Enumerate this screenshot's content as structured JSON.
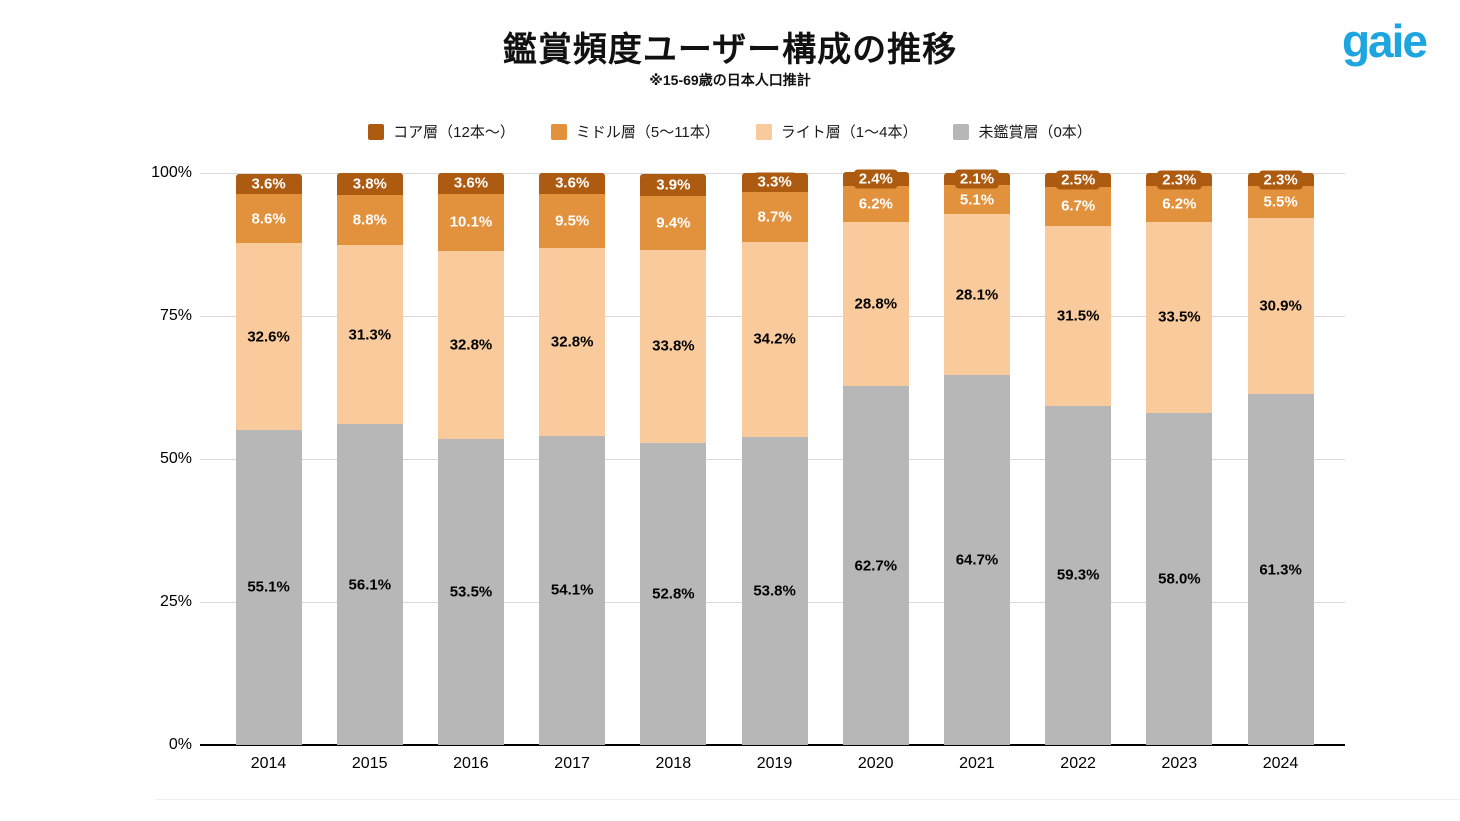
{
  "header": {
    "title": "鑑賞頻度ユーザー構成の推移",
    "subtitle": "※15-69歳の日本人口推計",
    "logo_text": "gaie",
    "logo_color": "#1CA5DE"
  },
  "chart_data": {
    "type": "bar",
    "stacked": true,
    "title": "鑑賞頻度ユーザー構成の推移",
    "subtitle": "※15-69歳の日本人口推計",
    "categories": [
      "2014",
      "2015",
      "2016",
      "2017",
      "2018",
      "2019",
      "2020",
      "2021",
      "2022",
      "2023",
      "2024"
    ],
    "series": [
      {
        "id": "core",
        "name": "コア層（12本〜）",
        "color": "#AD5B10",
        "label_color": "#FFFFFF",
        "values": [
          3.6,
          3.8,
          3.6,
          3.6,
          3.9,
          3.3,
          2.4,
          2.1,
          2.5,
          2.3,
          2.3
        ]
      },
      {
        "id": "middle",
        "name": "ミドル層（5〜11本）",
        "color": "#E2923D",
        "label_color": "#FFFFFF",
        "values": [
          8.6,
          8.8,
          10.1,
          9.5,
          9.4,
          8.7,
          6.2,
          5.1,
          6.7,
          6.2,
          5.5
        ]
      },
      {
        "id": "light",
        "name": "ライト層（1〜4本）",
        "color": "#F8CA9C",
        "label_color": "#000000",
        "values": [
          32.6,
          31.3,
          32.8,
          32.8,
          33.8,
          34.2,
          28.8,
          28.1,
          31.5,
          33.5,
          30.9
        ]
      },
      {
        "id": "unwatched",
        "name": "未鑑賞層（0本）",
        "color": "#B7B7B7",
        "label_color": "#000000",
        "values": [
          55.1,
          56.1,
          53.5,
          54.1,
          52.8,
          53.8,
          62.7,
          64.7,
          59.3,
          58.0,
          61.3
        ]
      }
    ],
    "stack_order_bottom_to_top": [
      "unwatched",
      "light",
      "middle",
      "core"
    ],
    "value_suffix": "%",
    "y_ticks": [
      {
        "label": "0%",
        "value": 0
      },
      {
        "label": "25%",
        "value": 25
      },
      {
        "label": "50%",
        "value": 50
      },
      {
        "label": "75%",
        "value": 75
      },
      {
        "label": "100%",
        "value": 100
      }
    ],
    "ylim": [
      0,
      100
    ],
    "grid": true,
    "legend_position": "top"
  }
}
